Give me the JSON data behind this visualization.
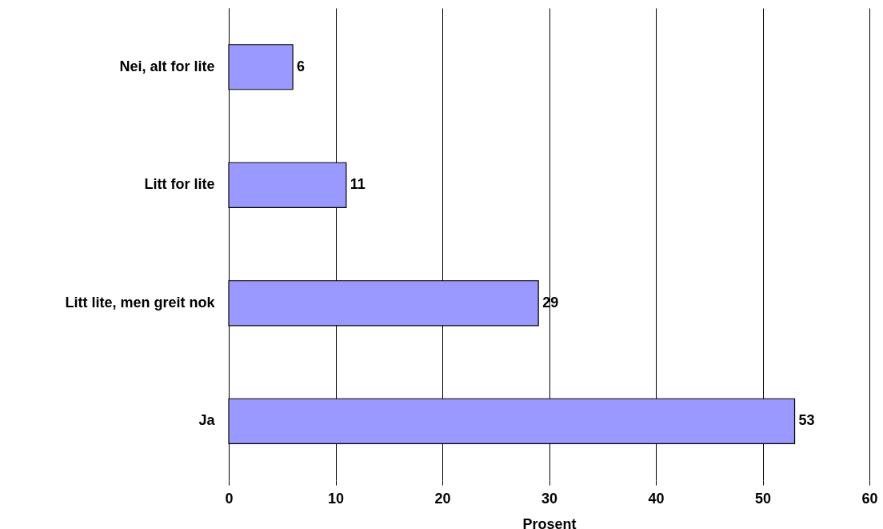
{
  "chart_data": {
    "type": "bar",
    "orientation": "horizontal",
    "xlabel": "Prosent",
    "categories": [
      "Nei, alt for lite",
      "Litt for lite",
      "Litt lite, men greit nok",
      "Ja"
    ],
    "values": [
      6,
      11,
      29,
      53
    ],
    "color": "#9999ff",
    "data_labels": true,
    "xlim": [
      0,
      60
    ],
    "xticks": [
      0,
      10,
      20,
      30,
      40,
      50,
      60
    ],
    "grid": "x"
  }
}
